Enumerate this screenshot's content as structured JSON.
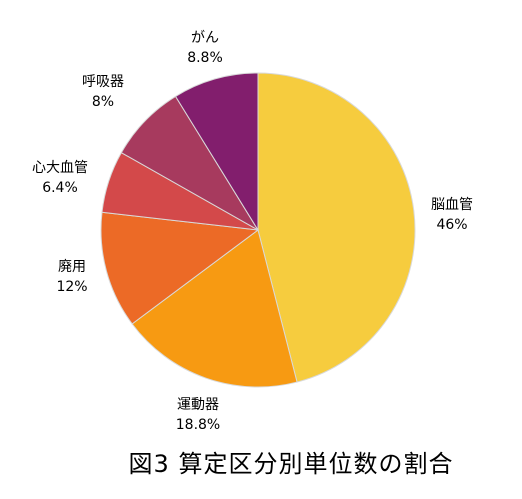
{
  "chart_data": {
    "type": "pie",
    "start": "12 o'clock",
    "direction": "clockwise",
    "slices": [
      {
        "name": "脳血管",
        "value_label": "46%",
        "value": 46,
        "color": "#f6cc3e"
      },
      {
        "name": "運動器",
        "value_label": "18.8%",
        "value": 18.8,
        "color": "#f79a12"
      },
      {
        "name": "廃用",
        "value_label": "12%",
        "value": 12,
        "color": "#ec6a26"
      },
      {
        "name": "心大血管",
        "value_label": "6.4%",
        "value": 6.4,
        "color": "#d3494a"
      },
      {
        "name": "呼吸器",
        "value_label": "8%",
        "value": 8,
        "color": "#a73a5e"
      },
      {
        "name": "がん",
        "value_label": "8.8%",
        "value": 8.8,
        "color": "#821e6d"
      }
    ]
  },
  "caption": "図3  算定区分別単位数の割合"
}
